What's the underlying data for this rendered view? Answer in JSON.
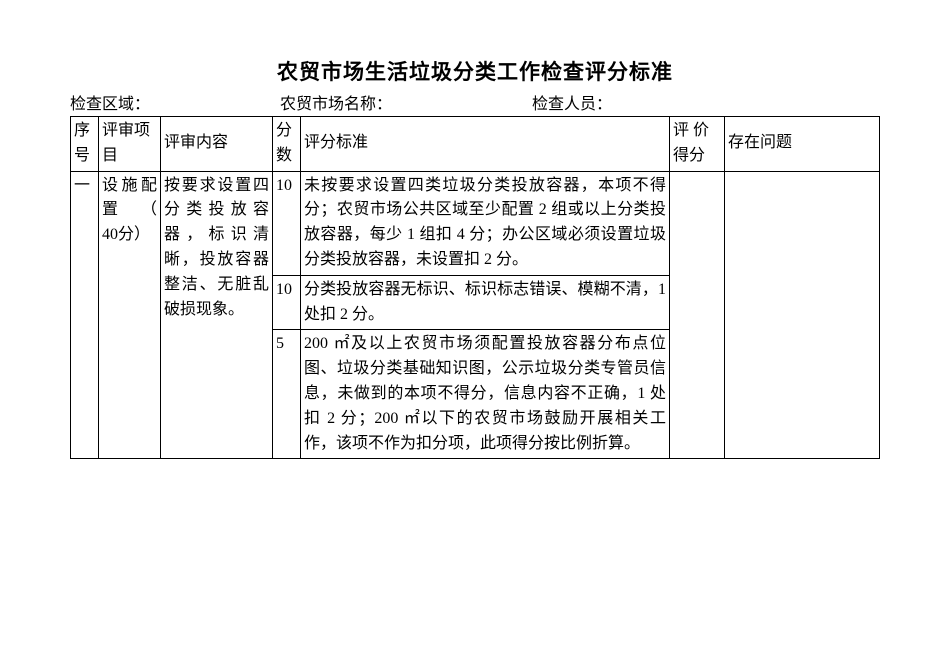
{
  "title": "农贸市场生活垃圾分类工作检查评分标准",
  "meta": {
    "area_label": "检查区域：",
    "market_label": "农贸市场名称：",
    "inspector_label": "检查人员："
  },
  "headers": {
    "num": "序号",
    "item": "评审项目",
    "content": "评审内容",
    "score": "分数",
    "standard": "评分标准",
    "value": "评 价得分",
    "problem": "存在问题"
  },
  "row": {
    "num": "一",
    "item": "设施配置（　40分）",
    "content": "按要求设置四分类投放容器，标识清晰，投放容器整洁、无脏乱破损现象。",
    "sub": [
      {
        "score": "10",
        "standard": "未按要求设置四类垃圾分类投放容器，本项不得分；农贸市场公共区域至少配置 2 组或以上分类投放容器，每少 1 组扣 4 分；办公区域必须设置垃圾分类投放容器，未设置扣 2 分。"
      },
      {
        "score": "10",
        "standard": "分类投放容器无标识、标识标志错误、模糊不清，1 处扣 2 分。"
      },
      {
        "score": "5",
        "standard": "200 ㎡及以上农贸市场须配置投放容器分布点位图、垃圾分类基础知识图，公示垃圾分类专管员信息，未做到的本项不得分，信息内容不正确，1 处扣 2 分；200 ㎡以下的农贸市场鼓励开展相关工作，该项不作为扣分项，此项得分按比例折算。"
      }
    ]
  }
}
